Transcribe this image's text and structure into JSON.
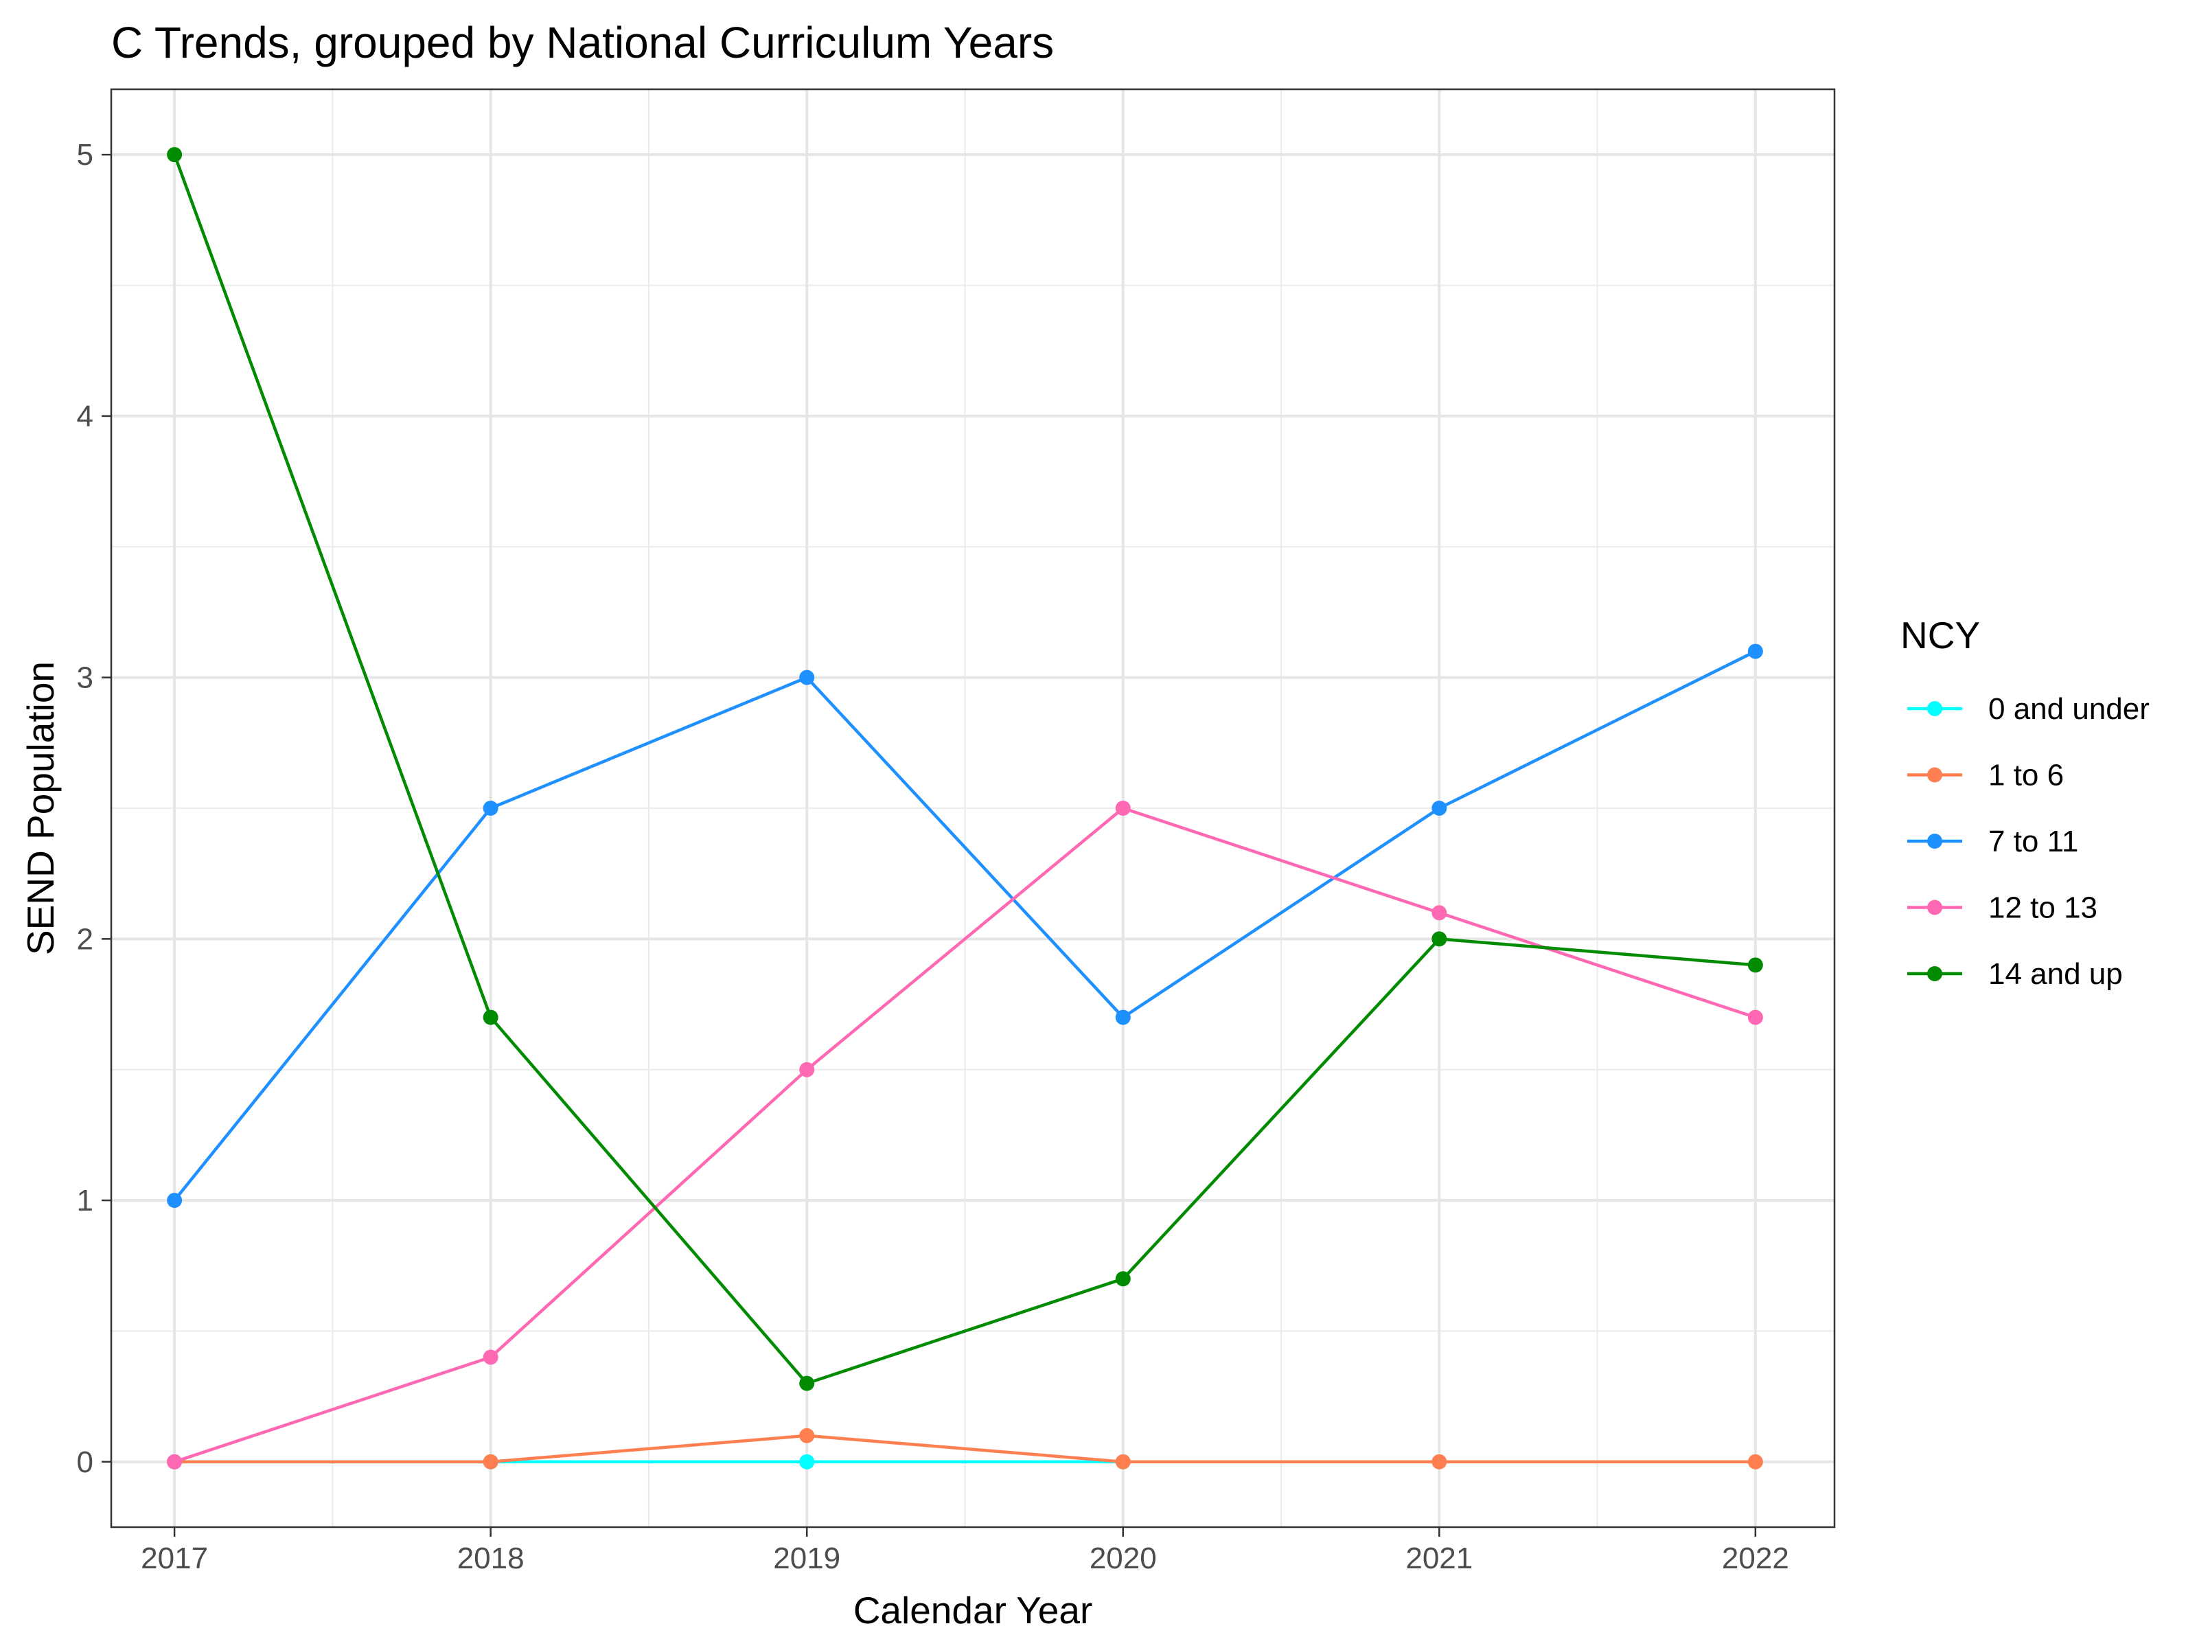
{
  "chart_data": {
    "type": "line",
    "title": "C Trends, grouped by National Curriculum Years",
    "xlabel": "Calendar Year",
    "ylabel": "SEND Population",
    "x": [
      2017,
      2018,
      2019,
      2020,
      2021,
      2022
    ],
    "xlim": [
      2016.8,
      2022.25
    ],
    "ylim": [
      -0.25,
      5.25
    ],
    "yticks": [
      0,
      1,
      2,
      3,
      4,
      5
    ],
    "grid": true,
    "legend": {
      "title": "NCY",
      "position": "right"
    },
    "series": [
      {
        "name": "0 and under",
        "color": "#00ffff",
        "values": [
          0,
          0,
          0,
          0,
          null,
          null
        ]
      },
      {
        "name": "1 to 6",
        "color": "#ff7f50",
        "values": [
          0,
          0,
          0.1,
          0,
          0,
          0
        ]
      },
      {
        "name": "7 to 11",
        "color": "#1e90ff",
        "values": [
          1,
          2.5,
          3,
          1.7,
          2.5,
          3.1
        ]
      },
      {
        "name": "12 to 13",
        "color": "#ff69b4",
        "values": [
          0,
          0.4,
          1.5,
          2.5,
          2.1,
          1.7
        ]
      },
      {
        "name": "14 and up",
        "color": "#008b00",
        "values": [
          5,
          1.7,
          0.3,
          0.7,
          2,
          1.9
        ]
      }
    ]
  }
}
